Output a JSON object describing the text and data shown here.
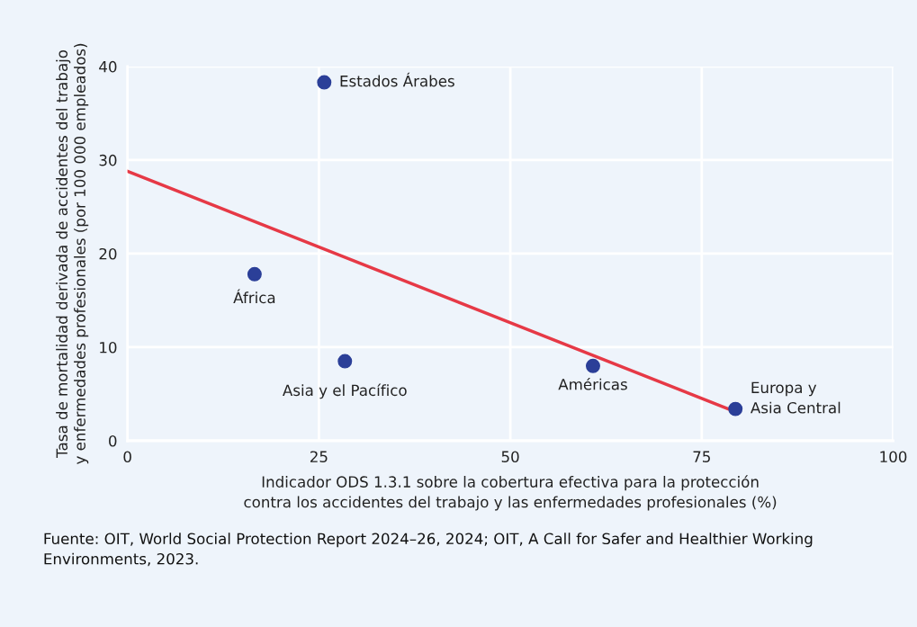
{
  "chart_data": {
    "type": "scatter",
    "xlabel": "Indicador ODS 1.3.1 sobre la cobertura efectiva para la protección\ncontra los accidentes del trabajo y las enfermedades profesionales (%)",
    "ylabel": "Tasa de mortalidad derivada de accidentes del trabajo\ny enfermedades profesionales (por 100 000 empleados)",
    "series": [
      {
        "color": "#2b3f98",
        "marker": "circle",
        "x": [
          25.7,
          16.6,
          28.4,
          60.8,
          79.4
        ],
        "values": [
          38.3,
          17.8,
          8.5,
          8.0,
          3.4
        ]
      },
      {
        "type": "line",
        "marker": "none",
        "color": "#e63946",
        "x": [
          0,
          79.4
        ],
        "values": [
          28.8,
          3.1
        ]
      }
    ],
    "annotations": [
      {
        "text": "Estados Árabes",
        "x": 25.7,
        "y": 38.3
      },
      {
        "text": "África",
        "x": 16.6,
        "y": 17.8
      },
      {
        "text": "Asia y el Pacífico",
        "x": 28.4,
        "y": 8.5
      },
      {
        "text": "Américas",
        "x": 60.8,
        "y": 8.0
      },
      {
        "text": "Europa y\nAsia Central",
        "x": 79.4,
        "y": 3.4
      },
      "Fuente: OIT, World Social Protection Report 2024–26, 2024; OIT, A Call for Safer and Healthier Working Environments, 2023."
    ],
    "xlim": [
      0,
      100
    ],
    "xticks": [
      0,
      25,
      50,
      75,
      100
    ],
    "ylim": [
      0,
      40
    ],
    "yticks": [
      0,
      10,
      20,
      30,
      40
    ],
    "grid": true,
    "line_style": "solid"
  }
}
